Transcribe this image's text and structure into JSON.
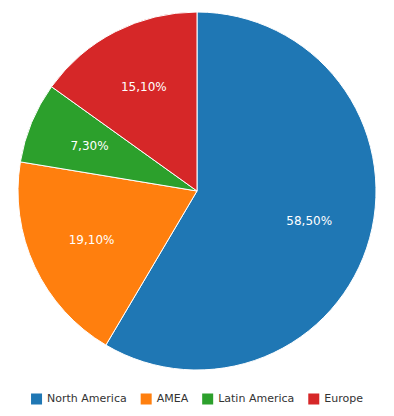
{
  "chart_data": {
    "type": "pie",
    "categories": [
      "North America",
      "AMEA",
      "Latin America",
      "Europe"
    ],
    "values": [
      58.5,
      19.1,
      7.3,
      15.1
    ],
    "value_labels": [
      "58,50%",
      "19,10%",
      "7,30%",
      "15,10%"
    ],
    "data_labels": true,
    "legend": "bottom"
  }
}
